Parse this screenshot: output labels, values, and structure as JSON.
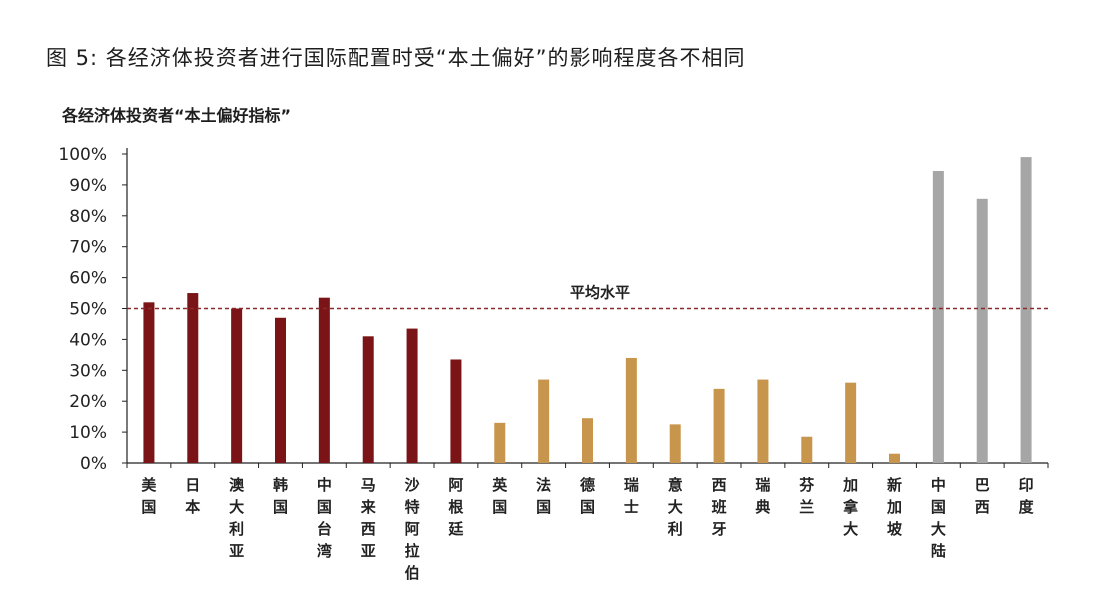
{
  "chart_data": {
    "type": "bar",
    "title": "图 5:  各经济体投资者进行国际配置时受“本土偏好”的影响程度各不相同",
    "subtitle": "各经济体投资者“本土偏好指标”",
    "ylim": [
      0,
      100
    ],
    "yticks": [
      "0%",
      "10%",
      "20%",
      "30%",
      "40%",
      "50%",
      "60%",
      "70%",
      "80%",
      "90%",
      "100%"
    ],
    "categories": [
      "美国",
      "日本",
      "澳大利亚",
      "韩国",
      "中国台湾",
      "马来西亚",
      "沙特阿拉伯",
      "阿根廷",
      "英国",
      "法国",
      "德国",
      "瑞士",
      "意大利",
      "西班牙",
      "瑞典",
      "芬兰",
      "加拿大",
      "新加坡",
      "中国大陆",
      "巴西",
      "印度"
    ],
    "values": [
      52,
      55,
      50,
      47,
      53.5,
      41,
      43.5,
      33.5,
      13,
      27,
      14.5,
      34,
      12.5,
      24,
      27,
      8.5,
      26,
      3,
      94.5,
      85.5,
      99
    ],
    "groups": [
      "dark",
      "dark",
      "dark",
      "dark",
      "dark",
      "dark",
      "dark",
      "dark",
      "gold",
      "gold",
      "gold",
      "gold",
      "gold",
      "gold",
      "gold",
      "gold",
      "gold",
      "gold",
      "gray",
      "gray",
      "gray"
    ],
    "colors": {
      "dark": "#7a1416",
      "gold": "#c8954c",
      "gray": "#a6a6a6"
    },
    "average": {
      "value": 50,
      "label": "平均水平",
      "color": "#8a2a2c"
    }
  }
}
